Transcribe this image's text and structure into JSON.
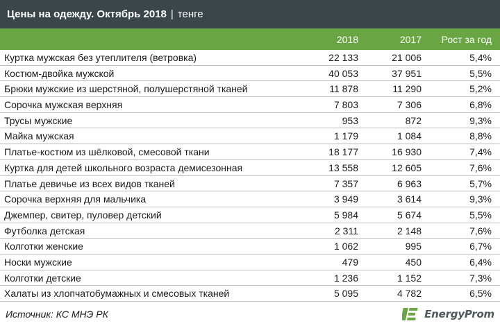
{
  "title": {
    "main": "Цены на одежду. Октябрь 2018",
    "separator": "|",
    "unit": "тенге"
  },
  "columns": [
    "2018",
    "2017",
    "Рост за год"
  ],
  "rows": [
    {
      "name": "Куртка мужская без утеплителя (ветровка)",
      "v2018": "22 133",
      "v2017": "21 006",
      "growth": "5,4%"
    },
    {
      "name": "Костюм-двойка мужской",
      "v2018": "40 053",
      "v2017": "37 951",
      "growth": "5,5%"
    },
    {
      "name": "Брюки мужские из шерстяной, полушерстяной тканей",
      "v2018": "11 878",
      "v2017": "11 290",
      "growth": "5,2%"
    },
    {
      "name": "Сорочка мужская верхняя",
      "v2018": "7 803",
      "v2017": "7 306",
      "growth": "6,8%"
    },
    {
      "name": "Трусы мужские",
      "v2018": "953",
      "v2017": "872",
      "growth": "9,3%"
    },
    {
      "name": "Майка мужская",
      "v2018": "1 179",
      "v2017": "1 084",
      "growth": "8,8%"
    },
    {
      "name": "Платье-костюм из шёлковой, смесовой ткани",
      "v2018": "18 177",
      "v2017": "16 930",
      "growth": "7,4%"
    },
    {
      "name": "Куртка для детей школьного возраста демисезонная",
      "v2018": "13 558",
      "v2017": "12 605",
      "growth": "7,6%"
    },
    {
      "name": "Платье девичье из всех видов тканей",
      "v2018": "7 357",
      "v2017": "6 963",
      "growth": "5,7%"
    },
    {
      "name": "Сорочка верхняя для мальчика",
      "v2018": "3 949",
      "v2017": "3 614",
      "growth": "9,3%"
    },
    {
      "name": "Джемпер, свитер, пуловер детский",
      "v2018": "5 984",
      "v2017": "5 674",
      "growth": "5,5%"
    },
    {
      "name": "Футболка детская",
      "v2018": "2 311",
      "v2017": "2 148",
      "growth": "7,6%"
    },
    {
      "name": "Колготки женские",
      "v2018": "1 062",
      "v2017": "995",
      "growth": "6,7%"
    },
    {
      "name": "Носки мужские",
      "v2018": "479",
      "v2017": "450",
      "growth": "6,4%"
    },
    {
      "name": "Колготки детские",
      "v2018": "1 236",
      "v2017": "1 152",
      "growth": "7,3%"
    },
    {
      "name": "Халаты из хлопчатобумажных и смесовых тканей",
      "v2018": "5 095",
      "v2017": "4 782",
      "growth": "6,5%"
    }
  ],
  "source": "Источник: КС МНЭ РК",
  "logo": {
    "text": "EnergyProm",
    "icon": "energyprom-logo-icon"
  },
  "colors": {
    "title_bg": "#3a4649",
    "header_bg": "#6aa543",
    "logo_green": "#6aa543",
    "logo_text": "#4f5a5c"
  }
}
